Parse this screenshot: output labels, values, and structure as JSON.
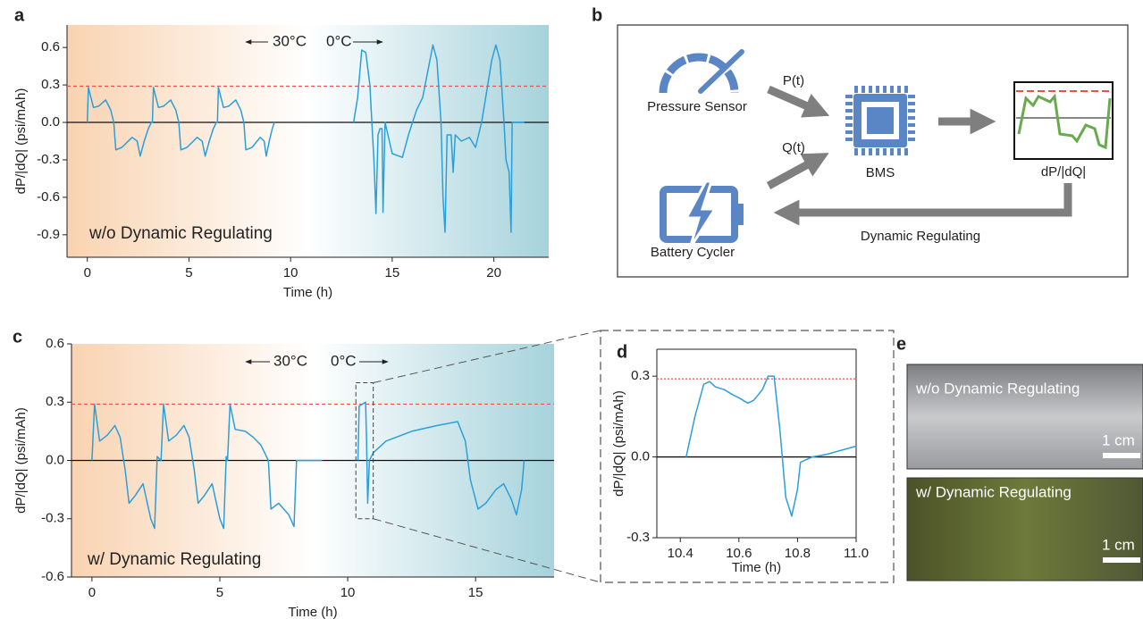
{
  "chart_data": [
    {
      "type": "line",
      "panel_label": "a",
      "y_label": "dP/|dQ| (psi/mAh)",
      "x_label": "Time (h)",
      "annotations": [
        "30°C",
        "0°C"
      ],
      "inset_label": "w/o Dynamic Regulating",
      "xlim": [
        -1,
        22.7
      ],
      "xticks": [
        0,
        5,
        10,
        15,
        20
      ],
      "ylim": [
        -1.08,
        0.78
      ],
      "yticks": [
        0.6,
        0.3,
        {
          "value": 0,
          "label": "0.0"
        },
        -0.3,
        -0.6,
        -0.9
      ],
      "threshold": 0.29,
      "threshold_color": "#e8534a",
      "color": "#2c9fd9",
      "background_colors": [
        "#f9d3b1",
        "#ffffff",
        "#a6d3dc"
      ],
      "x": [
        0,
        0.05,
        0.3,
        0.55,
        0.9,
        1.15,
        1.3,
        1.4,
        1.7,
        2.2,
        2.45,
        2.6,
        2.8,
        3.0,
        3.15,
        3.2,
        3.25,
        3.5,
        3.75,
        4.1,
        4.35,
        4.5,
        4.6,
        4.9,
        5.4,
        5.65,
        5.8,
        6.0,
        6.2,
        6.35,
        6.4,
        6.45,
        6.7,
        6.95,
        7.3,
        7.55,
        7.7,
        7.8,
        8.1,
        8.5,
        8.7,
        8.8,
        8.95,
        9.1,
        9.2,
        11,
        13.1,
        13.3,
        13.5,
        13.7,
        13.9,
        14.0,
        14.1,
        14.2,
        14.3,
        14.4,
        14.5,
        14.55,
        14.65,
        15.0,
        15.5,
        15.8,
        16.0,
        16.2,
        16.5,
        16.8,
        17.0,
        17.2,
        17.4,
        17.5,
        17.6,
        17.7,
        17.9,
        18.0,
        18.1,
        18.4,
        18.8,
        19.1,
        19.4,
        19.6,
        19.9,
        20.1,
        20.3,
        20.5,
        20.6,
        20.75,
        20.85,
        20.9,
        21.5
      ],
      "values": [
        0,
        0.28,
        0.12,
        0.13,
        0.18,
        0.1,
        0,
        -0.22,
        -0.2,
        -0.12,
        -0.15,
        -0.27,
        -0.15,
        -0.05,
        0,
        0,
        0.28,
        0.12,
        0.13,
        0.18,
        0.1,
        0,
        -0.22,
        -0.2,
        -0.12,
        -0.15,
        -0.27,
        -0.15,
        -0.05,
        0,
        0,
        0.28,
        0.12,
        0.13,
        0.18,
        0.1,
        0,
        -0.22,
        -0.2,
        -0.12,
        -0.15,
        -0.27,
        -0.15,
        -0.05,
        0,
        null,
        0,
        0.2,
        0.58,
        0.56,
        0.3,
        0,
        -0.3,
        -0.73,
        -0.1,
        -0.05,
        -0.05,
        -0.72,
        0,
        -0.25,
        -0.28,
        -0.1,
        0,
        0.1,
        0.2,
        0.45,
        0.62,
        0.5,
        0,
        -0.6,
        -0.88,
        -0.1,
        -0.1,
        -0.4,
        -0.1,
        -0.15,
        -0.12,
        -0.2,
        0,
        0.2,
        0.5,
        0.62,
        0.5,
        0,
        -0.3,
        -0.4,
        -0.88,
        0,
        0
      ]
    },
    {
      "type": "line",
      "panel_label": "c",
      "y_label": "dP/|dQ| (psi/mAh)",
      "x_label": "Time (h)",
      "annotations": [
        "30°C",
        "0°C"
      ],
      "inset_label": "w/ Dynamic Regulating",
      "xlim": [
        -0.8,
        18.07
      ],
      "xticks": [
        0,
        5,
        10,
        15
      ],
      "ylim": [
        -0.6,
        0.6
      ],
      "yticks": [
        0.6,
        0.3,
        {
          "value": 0,
          "label": "0.0"
        },
        -0.3,
        -0.6
      ],
      "threshold": 0.29,
      "threshold_color": "#e8534a",
      "color": "#2c9fd9",
      "background_colors": [
        "#f9d3b1",
        "#ffffff",
        "#a6d3dc"
      ],
      "x": [
        0,
        0.1,
        0.3,
        0.6,
        0.9,
        1.1,
        1.3,
        1.45,
        1.7,
        2.0,
        2.3,
        2.45,
        2.55,
        2.7,
        2.8,
        3.0,
        3.3,
        3.6,
        3.8,
        4.0,
        4.15,
        4.4,
        4.7,
        5.0,
        5.15,
        5.25,
        5.3,
        5.4,
        5.6,
        6.0,
        6.3,
        6.6,
        6.9,
        7.0,
        7.3,
        7.7,
        7.9,
        8.0,
        9.0,
        9.5,
        10.4,
        10.45,
        10.7,
        10.74,
        10.78,
        10.85,
        11.0,
        11.5,
        12.5,
        13.5,
        14.3,
        14.6,
        14.8,
        15.1,
        15.4,
        15.8,
        16.1,
        16.4,
        16.6,
        16.8,
        16.9
      ],
      "values": [
        0,
        0.29,
        0.1,
        0.13,
        0.18,
        0.12,
        -0.05,
        -0.22,
        -0.18,
        -0.12,
        -0.3,
        -0.35,
        0.02,
        0,
        0.29,
        0.1,
        0.13,
        0.18,
        0.12,
        -0.05,
        -0.22,
        -0.18,
        -0.12,
        -0.3,
        -0.35,
        0.02,
        0,
        0.29,
        0.16,
        0.15,
        0.12,
        0.08,
        0,
        -0.25,
        -0.22,
        -0.28,
        -0.34,
        0,
        0,
        null,
        0,
        0.28,
        0.3,
        0.1,
        -0.22,
        0,
        0.04,
        0.1,
        0.15,
        0.18,
        0.2,
        0.1,
        -0.1,
        -0.25,
        -0.22,
        -0.15,
        -0.12,
        -0.2,
        -0.28,
        -0.15,
        0
      ]
    },
    {
      "type": "line",
      "panel_label": "d",
      "y_label": "dP/|dQ| (psi/mAh)",
      "x_label": "Time (h)",
      "xlim": [
        10.32,
        11.0
      ],
      "xticks": [
        10.4,
        10.6,
        10.8,
        {
          "value": 11,
          "label": "11.0"
        }
      ],
      "ylim": [
        -0.3,
        0.4
      ],
      "yticks": [
        0.3,
        {
          "value": 0,
          "label": "0.0"
        },
        -0.3
      ],
      "threshold": 0.29,
      "threshold_color": "#e8534a",
      "color": "#2c9fd9",
      "x": [
        10.42,
        10.45,
        10.48,
        10.5,
        10.52,
        10.55,
        10.58,
        10.6,
        10.63,
        10.65,
        10.68,
        10.7,
        10.72,
        10.74,
        10.76,
        10.78,
        10.8,
        10.81,
        10.85,
        10.9,
        11.0
      ],
      "values": [
        0,
        0.15,
        0.27,
        0.28,
        0.26,
        0.25,
        0.23,
        0.22,
        0.2,
        0.21,
        0.25,
        0.3,
        0.3,
        0.1,
        -0.15,
        -0.22,
        -0.12,
        -0.02,
        0,
        0.01,
        0.04
      ]
    }
  ],
  "diagram": {
    "panel_label": "b",
    "sensor": "Pressure Sensor",
    "p_signal": "P(t)",
    "q_signal": "Q(t)",
    "bms": "BMS",
    "output": "dP/|dQ|",
    "cycler": "Battery Cycler",
    "feedback": "Dynamic Regulating"
  },
  "photo": {
    "panel_label": "e",
    "top_label": "w/o Dynamic Regulating",
    "top_scale": "1 cm",
    "bottom_label": "w/ Dynamic Regulating",
    "bottom_scale": "1 cm"
  }
}
